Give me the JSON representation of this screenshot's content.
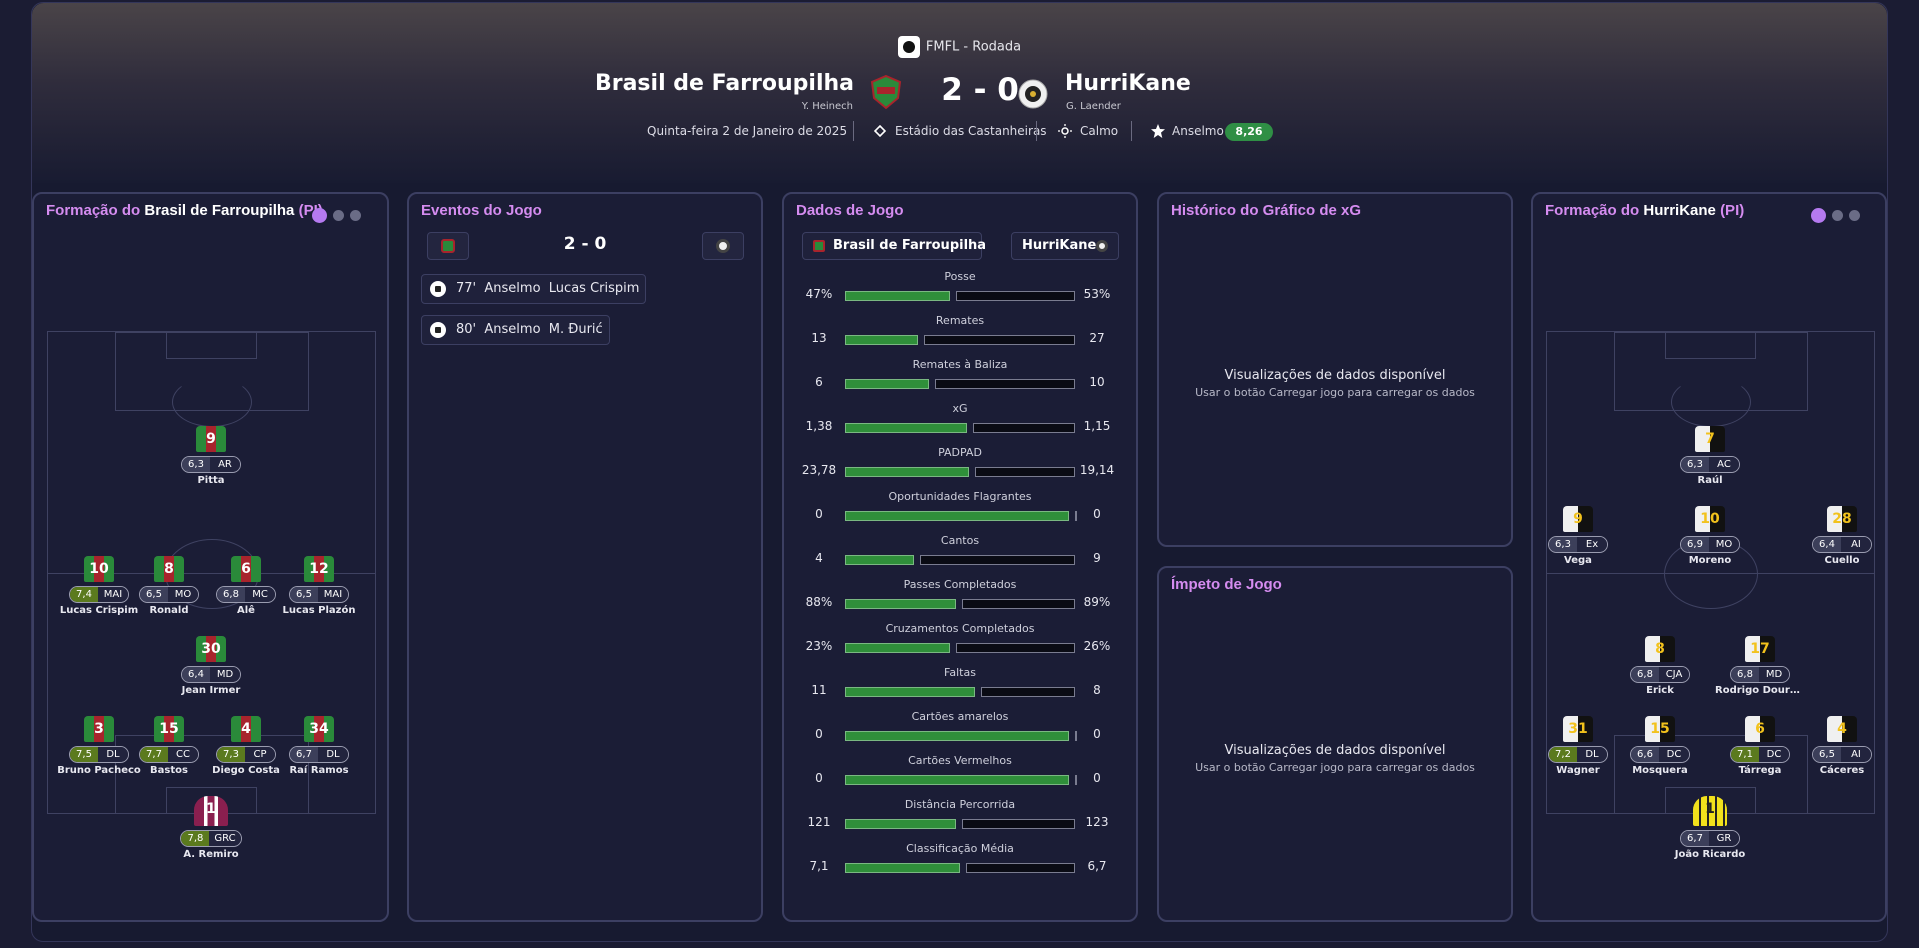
{
  "header": {
    "competition": "FMFL - Rodada",
    "home_team": "Brasil de Farroupilha",
    "home_manager": "Y. Heinech",
    "away_team": "HurriKane",
    "away_manager": "G. Laender",
    "score": "2 - 0",
    "date": "Quinta-feira 2 de Janeiro de 2025",
    "stadium": "Estádio das Castanheiras",
    "weather": "Calmo",
    "potm": "Anselmo",
    "potm_rating": "8,26"
  },
  "colors": {
    "accent": "#d58cf0",
    "positive": "#2f8f3a",
    "rating_good": "#5b7a1e"
  },
  "home_panel": {
    "title_prefix": "Formação do",
    "team": "Brasil de Farroupilha",
    "suffix": "(PI)",
    "players": [
      {
        "num": "9",
        "rating": "6,3",
        "pos": "AR",
        "name": "Pitta",
        "good": false
      },
      {
        "num": "10",
        "rating": "7,4",
        "pos": "MAI",
        "name": "Lucas Crispim",
        "good": true
      },
      {
        "num": "8",
        "rating": "6,5",
        "pos": "MO",
        "name": "Ronald",
        "good": false
      },
      {
        "num": "6",
        "rating": "6,8",
        "pos": "MC",
        "name": "Alê",
        "good": false
      },
      {
        "num": "12",
        "rating": "6,5",
        "pos": "MAI",
        "name": "Lucas Plazón",
        "good": false
      },
      {
        "num": "30",
        "rating": "6,4",
        "pos": "MD",
        "name": "Jean Irmer",
        "good": false
      },
      {
        "num": "3",
        "rating": "7,5",
        "pos": "DL",
        "name": "Bruno Pacheco",
        "good": true
      },
      {
        "num": "15",
        "rating": "7,7",
        "pos": "CC",
        "name": "Bastos",
        "good": true
      },
      {
        "num": "4",
        "rating": "7,3",
        "pos": "CP",
        "name": "Diego Costa",
        "good": true
      },
      {
        "num": "34",
        "rating": "6,7",
        "pos": "DL",
        "name": "Raí Ramos",
        "good": false
      },
      {
        "num": "1",
        "rating": "7,8",
        "pos": "GRC",
        "name": "Á. Remiro",
        "good": true
      }
    ]
  },
  "events_panel": {
    "title": "Eventos do Jogo",
    "score": "2 - 0",
    "events": [
      {
        "minute": "77'",
        "scorer": "Anselmo",
        "assist": "Lucas Crispim"
      },
      {
        "minute": "80'",
        "scorer": "Anselmo",
        "assist": "M. Đurić"
      }
    ]
  },
  "stats_panel": {
    "title": "Dados de Jogo",
    "home": "Brasil de Farroupilha",
    "away": "HurriKane",
    "stats": [
      {
        "label": "Posse",
        "home": "47%",
        "away": "53%",
        "share": 0.47
      },
      {
        "label": "Remates",
        "home": "13",
        "away": "27",
        "share": 0.325
      },
      {
        "label": "Remates à Baliza",
        "home": "6",
        "away": "10",
        "share": 0.375
      },
      {
        "label": "xG",
        "home": "1,38",
        "away": "1,15",
        "share": 0.545
      },
      {
        "label": "PADPAD",
        "home": "23,78",
        "away": "19,14",
        "share": 0.554
      },
      {
        "label": "Oportunidades Flagrantes",
        "home": "0",
        "away": "0",
        "share": 1.0
      },
      {
        "label": "Cantos",
        "home": "4",
        "away": "9",
        "share": 0.308
      },
      {
        "label": "Passes Completados",
        "home": "88%",
        "away": "89%",
        "share": 0.497
      },
      {
        "label": "Cruzamentos Completados",
        "home": "23%",
        "away": "26%",
        "share": 0.469
      },
      {
        "label": "Faltas",
        "home": "11",
        "away": "8",
        "share": 0.579
      },
      {
        "label": "Cartões amarelos",
        "home": "0",
        "away": "0",
        "share": 1.0
      },
      {
        "label": "Cartões Vermelhos",
        "home": "0",
        "away": "0",
        "share": 1.0
      },
      {
        "label": "Distância Percorrida",
        "home": "121",
        "away": "123",
        "share": 0.496
      },
      {
        "label": "Classificação Média",
        "home": "7,1",
        "away": "6,7",
        "share": 0.515
      }
    ]
  },
  "xg_panel": {
    "title": "Histórico do Gráfico de xG",
    "msg": "Visualizações de dados disponível",
    "hint": "Usar o botão Carregar jogo para carregar os dados"
  },
  "momentum_panel": {
    "title": "Ímpeto de Jogo",
    "msg": "Visualizações de dados disponível",
    "hint": "Usar o botão Carregar jogo para carregar os dados"
  },
  "away_panel": {
    "title_prefix": "Formação do",
    "team": "HurriKane",
    "suffix": "(PI)",
    "players": [
      {
        "num": "7",
        "rating": "6,3",
        "pos": "AC",
        "name": "Raúl",
        "good": false
      },
      {
        "num": "9",
        "rating": "6,3",
        "pos": "Ex",
        "name": "Vega",
        "good": false
      },
      {
        "num": "10",
        "rating": "6,9",
        "pos": "MO",
        "name": "Moreno",
        "good": false
      },
      {
        "num": "28",
        "rating": "6,4",
        "pos": "AI",
        "name": "Cuello",
        "good": false
      },
      {
        "num": "8",
        "rating": "6,8",
        "pos": "CJA",
        "name": "Erick",
        "good": false
      },
      {
        "num": "17",
        "rating": "6,8",
        "pos": "MD",
        "name": "Rodrigo Dourado",
        "good": false
      },
      {
        "num": "31",
        "rating": "7,2",
        "pos": "DL",
        "name": "Wagner",
        "good": true
      },
      {
        "num": "15",
        "rating": "6,6",
        "pos": "DC",
        "name": "Mosquera",
        "good": false
      },
      {
        "num": "6",
        "rating": "7,1",
        "pos": "DC",
        "name": "Tárrega",
        "good": true
      },
      {
        "num": "4",
        "rating": "6,5",
        "pos": "AI",
        "name": "Cáceres",
        "good": false
      },
      {
        "num": "1",
        "rating": "6,7",
        "pos": "GR",
        "name": "João Ricardo",
        "good": false
      }
    ]
  }
}
